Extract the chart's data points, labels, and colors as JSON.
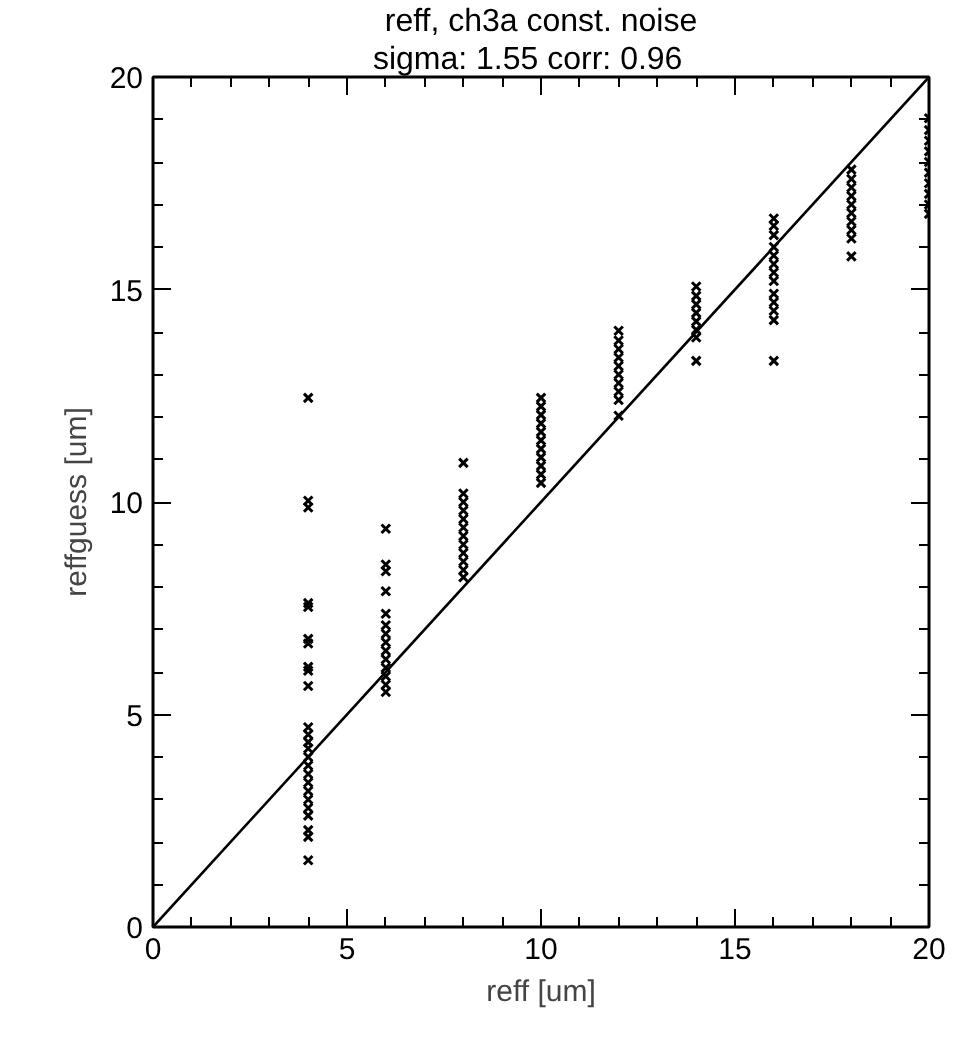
{
  "chart_data": {
    "type": "scatter",
    "title": "reff, ch3a const. noise",
    "subtitle": "sigma: 1.55    corr: 0.96",
    "xlabel": "reff [um]",
    "ylabel": "reffguess [um]",
    "xlim": [
      0,
      20
    ],
    "ylim": [
      0,
      20
    ],
    "xticks": [
      0,
      {
        "value": 1,
        "label": null
      },
      {
        "value": 2,
        "label": null
      },
      {
        "value": 3,
        "label": null
      },
      {
        "value": 4,
        "label": null
      },
      5,
      {
        "value": 6,
        "label": null
      },
      {
        "value": 7,
        "label": null
      },
      {
        "value": 8,
        "label": null
      },
      {
        "value": 9,
        "label": null
      },
      10,
      {
        "value": 11,
        "label": null
      },
      {
        "value": 12,
        "label": null
      },
      {
        "value": 13,
        "label": null
      },
      {
        "value": 14,
        "label": null
      },
      15,
      {
        "value": 16,
        "label": null
      },
      {
        "value": 17,
        "label": null
      },
      {
        "value": 18,
        "label": null
      },
      {
        "value": 19,
        "label": null
      },
      20
    ],
    "yticks": [
      0,
      {
        "value": 1,
        "label": null
      },
      {
        "value": 2,
        "label": null
      },
      {
        "value": 3,
        "label": null
      },
      {
        "value": 4,
        "label": null
      },
      5,
      {
        "value": 6,
        "label": null
      },
      {
        "value": 7,
        "label": null
      },
      {
        "value": 8,
        "label": null
      },
      {
        "value": 9,
        "label": null
      },
      10,
      {
        "value": 11,
        "label": null
      },
      {
        "value": 12,
        "label": null
      },
      {
        "value": 13,
        "label": null
      },
      {
        "value": 14,
        "label": null
      },
      15,
      {
        "value": 16,
        "label": null
      },
      {
        "value": 17,
        "label": null
      },
      {
        "value": 18,
        "label": null
      },
      {
        "value": 19,
        "label": null
      },
      20
    ],
    "grid": false,
    "series": [
      {
        "color": "#000000",
        "marker": "cross",
        "x": [
          4,
          4,
          4,
          4,
          4,
          4,
          4,
          4,
          4,
          4,
          4,
          4,
          4,
          4,
          4,
          4,
          4,
          4,
          4,
          4,
          4,
          4,
          4,
          4,
          4,
          6,
          6,
          6,
          6,
          6,
          6,
          6,
          6,
          6,
          6,
          6,
          6,
          6,
          6,
          8,
          8,
          8,
          8,
          8,
          8,
          8,
          8,
          8,
          8,
          8,
          8,
          10,
          10,
          10,
          10,
          10,
          10,
          10,
          10,
          10,
          10,
          10,
          12,
          12,
          12,
          12,
          12,
          12,
          12,
          12,
          12,
          12,
          14,
          14,
          14,
          14,
          14,
          14,
          14,
          14,
          16,
          16,
          16,
          16,
          16,
          16,
          16,
          16,
          16,
          16,
          16,
          16,
          16,
          18,
          18,
          18,
          18,
          18,
          18,
          18,
          18,
          18,
          18,
          20,
          20,
          20,
          20,
          20,
          20,
          20,
          20,
          20,
          20
        ],
        "values": [
          2.62,
          2.8,
          3.0,
          3.2,
          3.4,
          3.6,
          3.8,
          4.0,
          4.2,
          4.35,
          4.53,
          4.7,
          5.67,
          6.03,
          6.12,
          6.67,
          6.78,
          7.53,
          7.62,
          9.87,
          10.03,
          12.45,
          2.28,
          2.12,
          1.57,
          5.53,
          5.7,
          5.9,
          6.1,
          6.3,
          6.5,
          6.7,
          6.9,
          7.1,
          7.37,
          7.9,
          8.37,
          8.53,
          9.37,
          8.23,
          8.4,
          8.6,
          8.8,
          9.0,
          9.2,
          9.4,
          9.6,
          9.8,
          10.0,
          10.2,
          10.92,
          10.45,
          10.65,
          10.85,
          11.05,
          11.25,
          11.45,
          11.65,
          11.85,
          12.05,
          12.25,
          12.45,
          12.03,
          12.4,
          12.6,
          12.8,
          13.0,
          13.2,
          13.4,
          13.6,
          13.8,
          14.03,
          13.32,
          13.87,
          14.05,
          14.25,
          14.45,
          14.65,
          14.85,
          15.07,
          13.32,
          14.28,
          14.5,
          14.7,
          14.9,
          15.2,
          15.4,
          15.6,
          15.8,
          16.0,
          16.28,
          16.5,
          16.67,
          15.78,
          16.2,
          16.4,
          16.6,
          16.8,
          17.0,
          17.2,
          17.4,
          17.6,
          17.82,
          16.78,
          17.0,
          17.25,
          17.5,
          17.75,
          18.0,
          18.25,
          18.5,
          18.75,
          19.03
        ]
      },
      {
        "type": "line",
        "marker": "none",
        "color": "#000000",
        "x": [
          0,
          20
        ],
        "values": [
          0,
          20
        ]
      }
    ]
  }
}
